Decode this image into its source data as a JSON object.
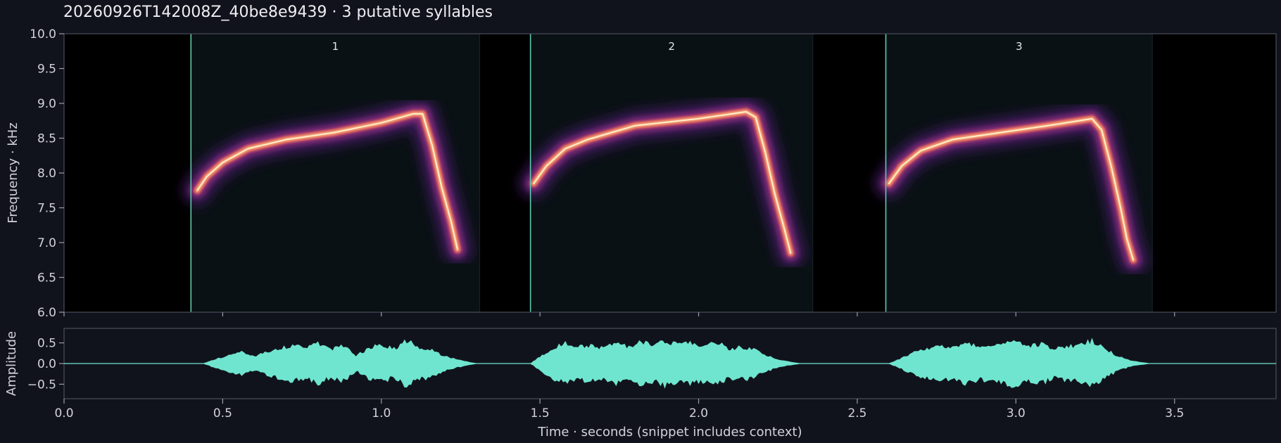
{
  "chart_data": [
    {
      "type": "heatmap",
      "title": "20260926T142008Z_40be8e9439  ·  3 putative syllables",
      "ylabel": "Frequency · kHz",
      "xlim": [
        0.0,
        3.82
      ],
      "ylim": [
        6.0,
        10.0
      ],
      "yticks": [
        "6.0",
        "6.5",
        "7.0",
        "7.5",
        "8.0",
        "8.5",
        "9.0",
        "9.5",
        "10.0"
      ],
      "grid": false,
      "colors": {
        "segment_line": "#5fc9ad",
        "spectrogram": "magma"
      },
      "syllables": [
        {
          "label": "1",
          "onset": 0.4,
          "offset": 1.31,
          "contour": [
            [
              0.42,
              7.75
            ],
            [
              0.45,
              7.95
            ],
            [
              0.5,
              8.15
            ],
            [
              0.58,
              8.35
            ],
            [
              0.7,
              8.48
            ],
            [
              0.85,
              8.58
            ],
            [
              1.0,
              8.72
            ],
            [
              1.1,
              8.85
            ],
            [
              1.13,
              8.85
            ],
            [
              1.16,
              8.4
            ],
            [
              1.19,
              7.8
            ],
            [
              1.22,
              7.3
            ],
            [
              1.24,
              6.9
            ]
          ]
        },
        {
          "label": "2",
          "onset": 1.47,
          "offset": 2.36,
          "contour": [
            [
              1.48,
              7.85
            ],
            [
              1.52,
              8.1
            ],
            [
              1.58,
              8.35
            ],
            [
              1.65,
              8.48
            ],
            [
              1.8,
              8.68
            ],
            [
              2.0,
              8.78
            ],
            [
              2.15,
              8.88
            ],
            [
              2.18,
              8.8
            ],
            [
              2.21,
              8.3
            ],
            [
              2.24,
              7.7
            ],
            [
              2.27,
              7.2
            ],
            [
              2.29,
              6.85
            ]
          ]
        },
        {
          "label": "3",
          "onset": 2.59,
          "offset": 3.43,
          "contour": [
            [
              2.6,
              7.85
            ],
            [
              2.64,
              8.1
            ],
            [
              2.7,
              8.32
            ],
            [
              2.8,
              8.48
            ],
            [
              2.95,
              8.58
            ],
            [
              3.1,
              8.68
            ],
            [
              3.24,
              8.78
            ],
            [
              3.27,
              8.62
            ],
            [
              3.3,
              8.1
            ],
            [
              3.33,
              7.5
            ],
            [
              3.35,
              7.05
            ],
            [
              3.37,
              6.75
            ]
          ]
        }
      ]
    },
    {
      "type": "area",
      "ylabel": "Amplitude",
      "xlabel": "Time · seconds (snippet includes context)",
      "xlim": [
        0.0,
        3.82
      ],
      "ylim": [
        -0.85,
        0.85
      ],
      "yticks": [
        "0.5",
        "0.0",
        "−0.5"
      ],
      "xticks": [
        "0.0",
        "0.5",
        "1.0",
        "1.5",
        "2.0",
        "2.5",
        "3.0",
        "3.5"
      ],
      "colors": {
        "waveform": "#6fe5cf"
      },
      "envelope": [
        [
          0.44,
          0.0
        ],
        [
          0.47,
          0.1
        ],
        [
          0.52,
          0.22
        ],
        [
          0.56,
          0.3
        ],
        [
          0.6,
          0.2
        ],
        [
          0.64,
          0.32
        ],
        [
          0.68,
          0.42
        ],
        [
          0.72,
          0.5
        ],
        [
          0.76,
          0.4
        ],
        [
          0.8,
          0.55
        ],
        [
          0.84,
          0.38
        ],
        [
          0.88,
          0.48
        ],
        [
          0.92,
          0.2
        ],
        [
          0.96,
          0.42
        ],
        [
          1.0,
          0.5
        ],
        [
          1.04,
          0.4
        ],
        [
          1.08,
          0.62
        ],
        [
          1.12,
          0.45
        ],
        [
          1.16,
          0.35
        ],
        [
          1.2,
          0.2
        ],
        [
          1.24,
          0.1
        ],
        [
          1.3,
          0.0
        ],
        [
          1.47,
          0.0
        ],
        [
          1.5,
          0.18
        ],
        [
          1.54,
          0.4
        ],
        [
          1.58,
          0.55
        ],
        [
          1.62,
          0.45
        ],
        [
          1.66,
          0.5
        ],
        [
          1.7,
          0.4
        ],
        [
          1.74,
          0.55
        ],
        [
          1.78,
          0.45
        ],
        [
          1.82,
          0.6
        ],
        [
          1.86,
          0.5
        ],
        [
          1.9,
          0.62
        ],
        [
          1.94,
          0.5
        ],
        [
          1.98,
          0.55
        ],
        [
          2.02,
          0.48
        ],
        [
          2.06,
          0.55
        ],
        [
          2.1,
          0.4
        ],
        [
          2.14,
          0.45
        ],
        [
          2.18,
          0.35
        ],
        [
          2.22,
          0.2
        ],
        [
          2.26,
          0.08
        ],
        [
          2.32,
          0.0
        ],
        [
          2.6,
          0.0
        ],
        [
          2.64,
          0.15
        ],
        [
          2.68,
          0.3
        ],
        [
          2.72,
          0.4
        ],
        [
          2.76,
          0.5
        ],
        [
          2.8,
          0.42
        ],
        [
          2.84,
          0.55
        ],
        [
          2.88,
          0.45
        ],
        [
          2.92,
          0.5
        ],
        [
          2.96,
          0.55
        ],
        [
          3.0,
          0.6
        ],
        [
          3.04,
          0.45
        ],
        [
          3.08,
          0.55
        ],
        [
          3.12,
          0.4
        ],
        [
          3.16,
          0.45
        ],
        [
          3.2,
          0.5
        ],
        [
          3.24,
          0.62
        ],
        [
          3.28,
          0.4
        ],
        [
          3.32,
          0.2
        ],
        [
          3.36,
          0.08
        ],
        [
          3.42,
          0.0
        ]
      ]
    }
  ]
}
